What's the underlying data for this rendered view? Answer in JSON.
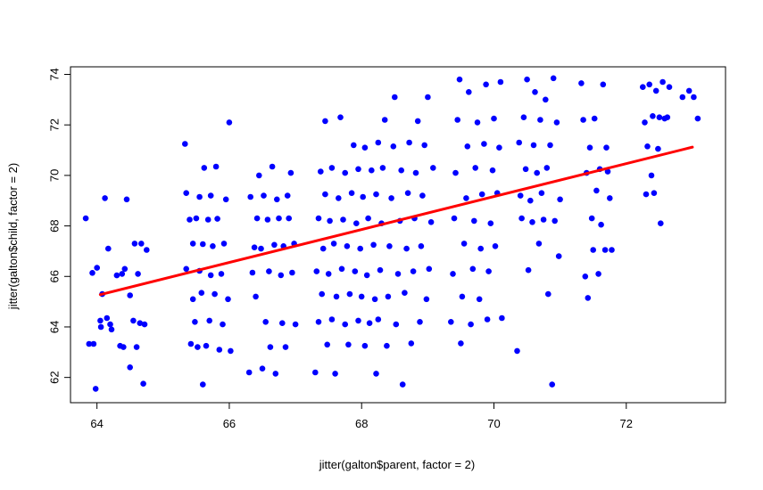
{
  "chart_data": {
    "type": "scatter",
    "xlabel": "jitter(galton$parent, factor = 2)",
    "ylabel": "jitter(galton$child, factor = 2)",
    "xlim": [
      63.6,
      73.5
    ],
    "ylim": [
      61.0,
      74.3
    ],
    "x_ticks": [
      64,
      66,
      68,
      70,
      72
    ],
    "y_ticks": [
      62,
      64,
      66,
      68,
      70,
      72,
      74
    ],
    "x_tick_labels": [
      "64",
      "66",
      "68",
      "70",
      "72"
    ],
    "y_tick_labels": [
      "62",
      "64",
      "66",
      "68",
      "70",
      "72",
      "74"
    ],
    "grid": false,
    "legend": "none",
    "point_color": "#0000ff",
    "line_color": "#ff0000",
    "regression_line": {
      "x": [
        64.05,
        73.0
      ],
      "y": [
        65.28,
        71.12
      ]
    },
    "series": [
      {
        "values": [
          [
            63.83,
            68.3
          ],
          [
            63.88,
            63.33
          ],
          [
            63.93,
            66.14
          ],
          [
            63.95,
            63.33
          ],
          [
            63.98,
            61.55
          ],
          [
            64.0,
            66.34
          ],
          [
            64.05,
            64.25
          ],
          [
            64.06,
            64.0
          ],
          [
            64.08,
            65.3
          ],
          [
            64.12,
            69.1
          ],
          [
            64.15,
            64.35
          ],
          [
            64.17,
            67.1
          ],
          [
            64.2,
            64.1
          ],
          [
            64.22,
            63.9
          ],
          [
            64.3,
            66.04
          ],
          [
            64.35,
            63.25
          ],
          [
            64.38,
            66.1
          ],
          [
            64.4,
            63.2
          ],
          [
            64.42,
            66.3
          ],
          [
            64.45,
            69.05
          ],
          [
            64.5,
            62.4
          ],
          [
            64.5,
            65.25
          ],
          [
            64.55,
            64.25
          ],
          [
            64.57,
            67.3
          ],
          [
            64.6,
            63.2
          ],
          [
            64.62,
            66.1
          ],
          [
            64.65,
            64.15
          ],
          [
            64.67,
            67.3
          ],
          [
            64.7,
            61.75
          ],
          [
            64.72,
            64.1
          ],
          [
            64.75,
            67.05
          ],
          [
            65.33,
            71.25
          ],
          [
            65.35,
            69.3
          ],
          [
            65.35,
            66.3
          ],
          [
            65.4,
            68.25
          ],
          [
            65.42,
            63.33
          ],
          [
            65.45,
            67.3
          ],
          [
            65.45,
            65.1
          ],
          [
            65.48,
            64.2
          ],
          [
            65.5,
            68.3
          ],
          [
            65.52,
            63.2
          ],
          [
            65.55,
            69.15
          ],
          [
            65.55,
            66.22
          ],
          [
            65.58,
            65.35
          ],
          [
            65.6,
            61.72
          ],
          [
            65.6,
            67.28
          ],
          [
            65.62,
            70.3
          ],
          [
            65.65,
            63.25
          ],
          [
            65.68,
            68.25
          ],
          [
            65.7,
            64.25
          ],
          [
            65.72,
            69.2
          ],
          [
            65.72,
            66.05
          ],
          [
            65.75,
            67.2
          ],
          [
            65.78,
            65.3
          ],
          [
            65.8,
            70.35
          ],
          [
            65.82,
            68.28
          ],
          [
            65.85,
            63.1
          ],
          [
            65.88,
            66.1
          ],
          [
            65.9,
            64.1
          ],
          [
            65.92,
            67.3
          ],
          [
            65.95,
            69.05
          ],
          [
            65.98,
            65.1
          ],
          [
            66.0,
            72.1
          ],
          [
            66.02,
            63.05
          ],
          [
            66.3,
            62.2
          ],
          [
            66.32,
            69.15
          ],
          [
            66.35,
            66.15
          ],
          [
            66.38,
            67.15
          ],
          [
            66.4,
            65.2
          ],
          [
            66.42,
            68.3
          ],
          [
            66.45,
            70.0
          ],
          [
            66.48,
            67.1
          ],
          [
            66.5,
            62.35
          ],
          [
            66.52,
            69.2
          ],
          [
            66.55,
            64.2
          ],
          [
            66.58,
            68.25
          ],
          [
            66.6,
            66.2
          ],
          [
            66.62,
            63.2
          ],
          [
            66.65,
            70.35
          ],
          [
            66.68,
            67.25
          ],
          [
            66.7,
            62.15
          ],
          [
            66.72,
            69.05
          ],
          [
            66.75,
            68.3
          ],
          [
            66.78,
            66.05
          ],
          [
            66.8,
            64.15
          ],
          [
            66.82,
            67.2
          ],
          [
            66.85,
            63.2
          ],
          [
            66.88,
            69.2
          ],
          [
            66.9,
            68.3
          ],
          [
            66.93,
            70.1
          ],
          [
            66.95,
            66.15
          ],
          [
            66.98,
            67.3
          ],
          [
            67.0,
            64.1
          ],
          [
            67.3,
            62.2
          ],
          [
            67.32,
            66.2
          ],
          [
            67.35,
            64.2
          ],
          [
            67.35,
            68.3
          ],
          [
            67.38,
            70.15
          ],
          [
            67.4,
            65.3
          ],
          [
            67.42,
            67.1
          ],
          [
            67.45,
            72.15
          ],
          [
            67.45,
            69.25
          ],
          [
            67.48,
            63.3
          ],
          [
            67.5,
            66.1
          ],
          [
            67.52,
            68.2
          ],
          [
            67.55,
            64.3
          ],
          [
            67.55,
            70.3
          ],
          [
            67.58,
            67.3
          ],
          [
            67.6,
            62.15
          ],
          [
            67.62,
            65.2
          ],
          [
            67.65,
            69.1
          ],
          [
            67.68,
            72.3
          ],
          [
            67.7,
            66.3
          ],
          [
            67.72,
            68.25
          ],
          [
            67.75,
            64.1
          ],
          [
            67.75,
            70.1
          ],
          [
            67.78,
            67.2
          ],
          [
            67.8,
            63.3
          ],
          [
            67.82,
            65.3
          ],
          [
            67.85,
            69.3
          ],
          [
            67.88,
            71.2
          ],
          [
            67.9,
            66.2
          ],
          [
            67.92,
            68.1
          ],
          [
            67.95,
            64.25
          ],
          [
            67.95,
            70.25
          ],
          [
            67.98,
            67.1
          ],
          [
            68.0,
            65.2
          ],
          [
            68.02,
            69.15
          ],
          [
            68.05,
            63.25
          ],
          [
            68.05,
            71.1
          ],
          [
            68.08,
            66.05
          ],
          [
            68.1,
            68.3
          ],
          [
            68.12,
            64.15
          ],
          [
            68.15,
            70.2
          ],
          [
            68.18,
            67.25
          ],
          [
            68.2,
            65.1
          ],
          [
            68.22,
            69.25
          ],
          [
            68.25,
            71.3
          ],
          [
            68.22,
            62.15
          ],
          [
            68.25,
            64.3
          ],
          [
            68.28,
            66.25
          ],
          [
            68.3,
            68.1
          ],
          [
            68.32,
            70.3
          ],
          [
            68.35,
            72.2
          ],
          [
            68.38,
            63.25
          ],
          [
            68.4,
            65.2
          ],
          [
            68.42,
            67.2
          ],
          [
            68.45,
            69.1
          ],
          [
            68.48,
            71.15
          ],
          [
            68.5,
            73.1
          ],
          [
            68.52,
            64.1
          ],
          [
            68.55,
            66.1
          ],
          [
            68.58,
            68.2
          ],
          [
            68.6,
            70.2
          ],
          [
            68.62,
            61.72
          ],
          [
            68.65,
            65.35
          ],
          [
            68.68,
            67.1
          ],
          [
            68.7,
            69.3
          ],
          [
            68.72,
            71.3
          ],
          [
            68.75,
            63.35
          ],
          [
            68.78,
            66.2
          ],
          [
            68.8,
            68.3
          ],
          [
            68.82,
            70.1
          ],
          [
            68.85,
            72.15
          ],
          [
            68.88,
            64.2
          ],
          [
            68.9,
            67.2
          ],
          [
            68.92,
            69.2
          ],
          [
            68.95,
            71.2
          ],
          [
            68.98,
            65.1
          ],
          [
            69.0,
            73.1
          ],
          [
            69.02,
            66.3
          ],
          [
            69.05,
            68.15
          ],
          [
            69.08,
            70.3
          ],
          [
            69.35,
            64.2
          ],
          [
            69.38,
            66.1
          ],
          [
            69.4,
            68.3
          ],
          [
            69.42,
            70.1
          ],
          [
            69.45,
            72.2
          ],
          [
            69.48,
            73.8
          ],
          [
            69.5,
            63.35
          ],
          [
            69.52,
            65.2
          ],
          [
            69.55,
            67.3
          ],
          [
            69.58,
            69.1
          ],
          [
            69.6,
            71.15
          ],
          [
            69.62,
            73.3
          ],
          [
            69.65,
            64.1
          ],
          [
            69.68,
            66.3
          ],
          [
            69.7,
            68.2
          ],
          [
            69.72,
            70.3
          ],
          [
            69.75,
            72.1
          ],
          [
            69.78,
            65.1
          ],
          [
            69.8,
            67.1
          ],
          [
            69.82,
            69.25
          ],
          [
            69.85,
            71.25
          ],
          [
            69.88,
            73.6
          ],
          [
            69.9,
            64.3
          ],
          [
            69.92,
            66.2
          ],
          [
            69.95,
            68.1
          ],
          [
            69.98,
            70.2
          ],
          [
            70.0,
            72.25
          ],
          [
            70.02,
            67.2
          ],
          [
            70.05,
            69.3
          ],
          [
            70.08,
            71.1
          ],
          [
            70.1,
            73.7
          ],
          [
            70.12,
            64.35
          ],
          [
            70.35,
            63.05
          ],
          [
            70.38,
            71.3
          ],
          [
            70.4,
            69.2
          ],
          [
            70.42,
            68.3
          ],
          [
            70.45,
            72.3
          ],
          [
            70.48,
            70.25
          ],
          [
            70.5,
            73.8
          ],
          [
            70.52,
            66.25
          ],
          [
            70.55,
            69.0
          ],
          [
            70.58,
            68.15
          ],
          [
            70.6,
            71.2
          ],
          [
            70.62,
            73.3
          ],
          [
            70.65,
            70.1
          ],
          [
            70.68,
            67.3
          ],
          [
            70.7,
            72.2
          ],
          [
            70.72,
            69.3
          ],
          [
            70.75,
            68.25
          ],
          [
            70.78,
            73.0
          ],
          [
            70.8,
            70.3
          ],
          [
            70.82,
            65.3
          ],
          [
            70.85,
            71.2
          ],
          [
            70.88,
            61.72
          ],
          [
            70.9,
            73.85
          ],
          [
            70.92,
            68.2
          ],
          [
            70.95,
            72.1
          ],
          [
            70.98,
            66.8
          ],
          [
            71.0,
            69.05
          ],
          [
            71.32,
            73.65
          ],
          [
            71.35,
            72.2
          ],
          [
            71.38,
            66.0
          ],
          [
            71.4,
            70.1
          ],
          [
            71.42,
            65.15
          ],
          [
            71.45,
            71.1
          ],
          [
            71.48,
            68.3
          ],
          [
            71.5,
            67.05
          ],
          [
            71.52,
            72.25
          ],
          [
            71.55,
            69.4
          ],
          [
            71.58,
            66.1
          ],
          [
            71.6,
            70.25
          ],
          [
            71.62,
            68.05
          ],
          [
            71.65,
            73.6
          ],
          [
            71.68,
            67.05
          ],
          [
            71.7,
            71.1
          ],
          [
            71.72,
            70.15
          ],
          [
            71.75,
            69.1
          ],
          [
            71.78,
            67.05
          ],
          [
            72.25,
            73.5
          ],
          [
            72.28,
            72.1
          ],
          [
            72.3,
            69.25
          ],
          [
            72.32,
            71.15
          ],
          [
            72.35,
            73.6
          ],
          [
            72.38,
            70.0
          ],
          [
            72.4,
            72.35
          ],
          [
            72.42,
            69.3
          ],
          [
            72.45,
            73.35
          ],
          [
            72.48,
            71.05
          ],
          [
            72.5,
            72.3
          ],
          [
            72.52,
            68.1
          ],
          [
            72.55,
            73.7
          ],
          [
            72.58,
            72.25
          ],
          [
            72.62,
            72.3
          ],
          [
            72.65,
            73.5
          ],
          [
            72.85,
            73.1
          ],
          [
            72.95,
            73.35
          ],
          [
            73.02,
            73.1
          ],
          [
            73.08,
            72.25
          ]
        ]
      }
    ]
  }
}
